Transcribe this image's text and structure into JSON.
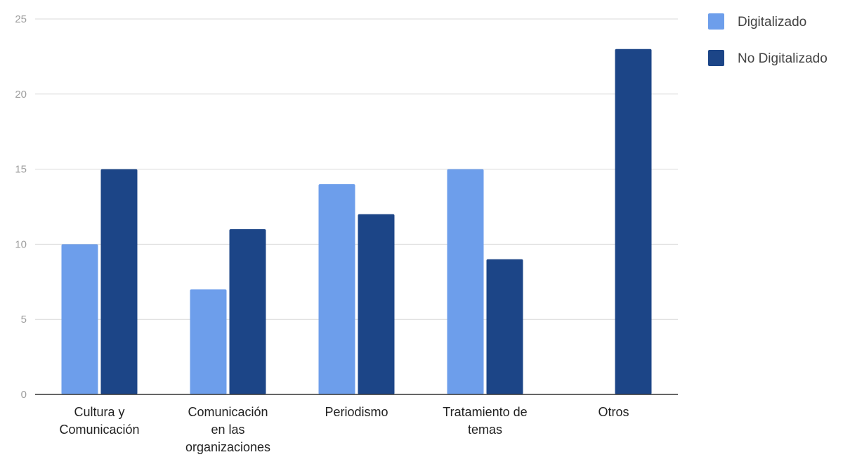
{
  "chart_data": {
    "type": "bar",
    "title": "",
    "xlabel": "",
    "ylabel": "",
    "categories": [
      [
        "Cultura y",
        "Comunicación"
      ],
      [
        "Comunicación",
        "en las",
        "organizaciones"
      ],
      [
        "Periodismo"
      ],
      [
        "Tratamiento de",
        "temas"
      ],
      [
        "Otros"
      ]
    ],
    "series": [
      {
        "name": "Digitalizado",
        "color": "#6d9eeb",
        "values": [
          10,
          7,
          14,
          15,
          0
        ]
      },
      {
        "name": "No Digitalizado",
        "color": "#1c4587",
        "values": [
          15,
          11,
          12,
          9,
          23
        ]
      }
    ],
    "ylim": [
      0,
      25
    ],
    "yticks": [
      0,
      5,
      10,
      15,
      20,
      25
    ],
    "grid": true,
    "legend_position": "top-right"
  }
}
